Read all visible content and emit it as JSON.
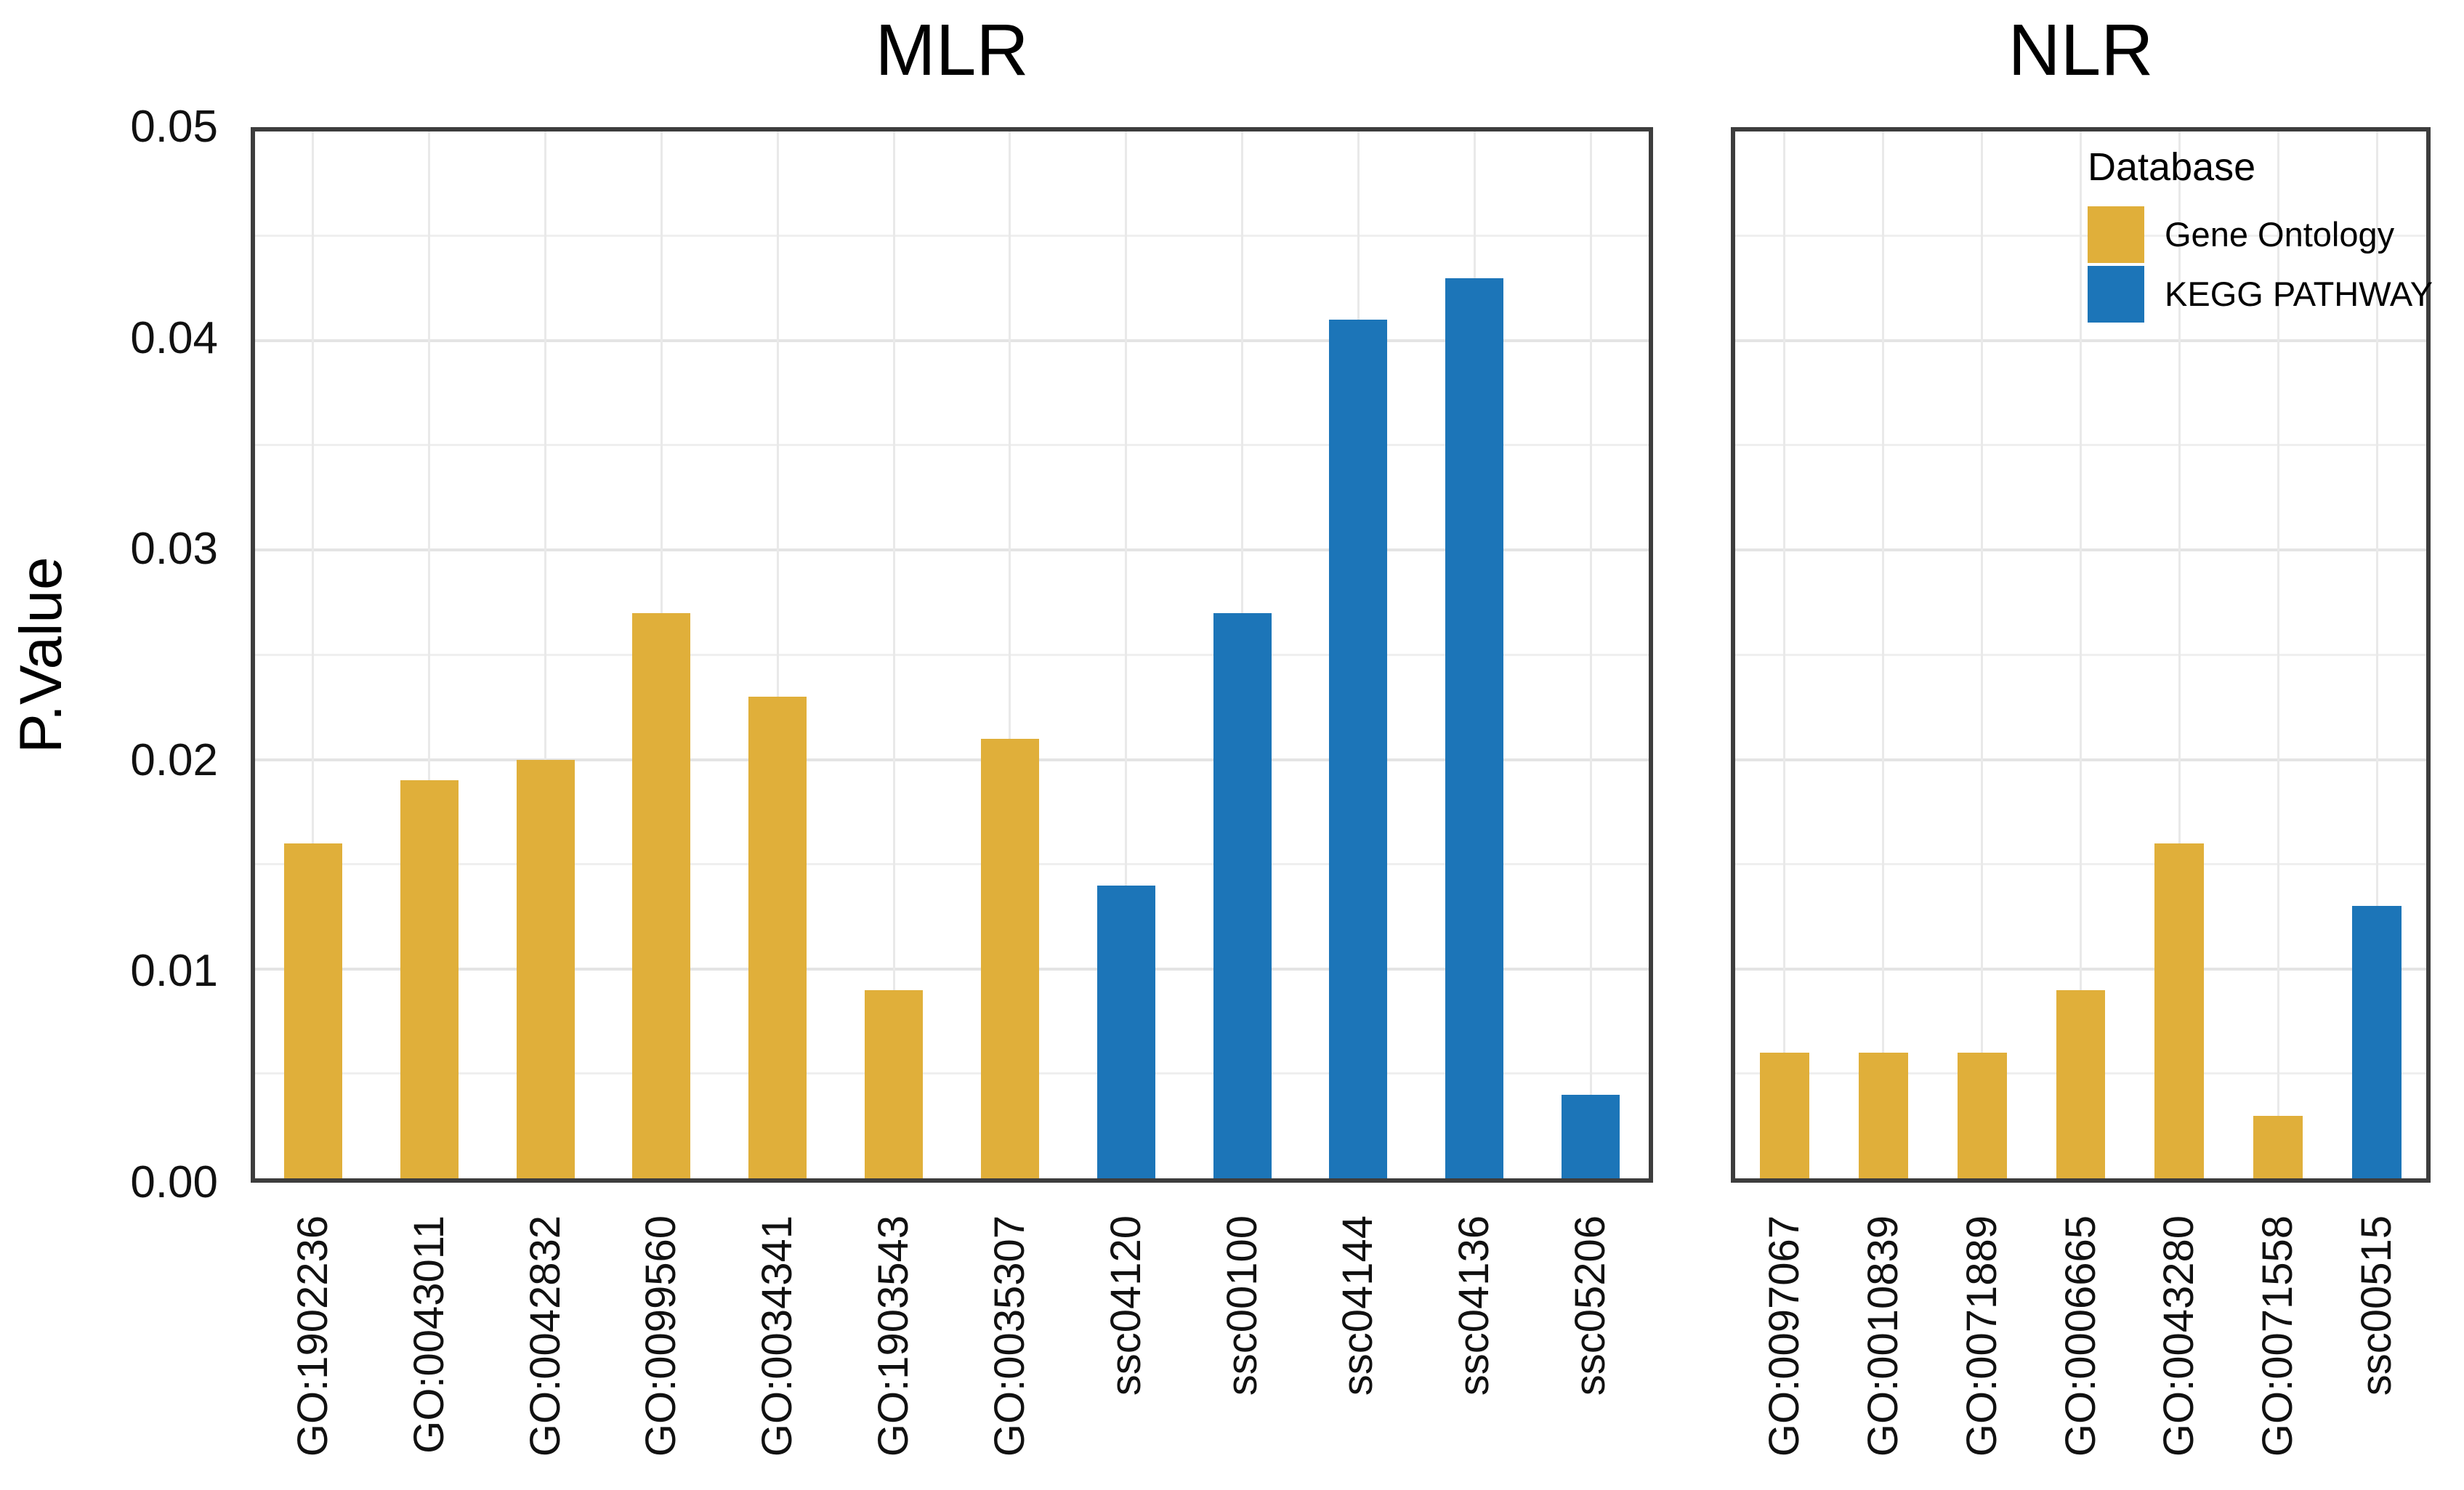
{
  "y_axis": {
    "label": "P.Value",
    "tick_labels": [
      "0.05",
      "0.04",
      "0.03",
      "0.02",
      "0.01",
      "0.00"
    ]
  },
  "legend": {
    "title": "Database",
    "items": [
      {
        "key": "gene_ontology",
        "label": "Gene Ontology",
        "color": "#E0AF3A"
      },
      {
        "key": "kegg_pathway",
        "label": "KEGG PATHWAY",
        "color": "#1C75B8"
      }
    ]
  },
  "chart_data": [
    {
      "type": "bar",
      "title": "MLR",
      "xlabel": "",
      "ylabel": "P.Value",
      "ylim": [
        0,
        0.05
      ],
      "grid": "horizontal major every 0.01 and minor every 0.005; vertical line at each category center",
      "legend_position": "inside top-right of NLR panel",
      "categories": [
        "GO:1902236",
        "GO:0043011",
        "GO:0042832",
        "GO:0099560",
        "GO:0034341",
        "GO:1903543",
        "GO:0035307",
        "ssc04120",
        "ssc00100",
        "ssc04144",
        "ssc04136",
        "ssc05206"
      ],
      "values": [
        0.016,
        0.019,
        0.02,
        0.027,
        0.023,
        0.009,
        0.021,
        0.014,
        0.027,
        0.041,
        0.043,
        0.004
      ],
      "databases": [
        "gene_ontology",
        "gene_ontology",
        "gene_ontology",
        "gene_ontology",
        "gene_ontology",
        "gene_ontology",
        "gene_ontology",
        "kegg_pathway",
        "kegg_pathway",
        "kegg_pathway",
        "kegg_pathway",
        "kegg_pathway"
      ]
    },
    {
      "type": "bar",
      "title": "NLR",
      "xlabel": "",
      "ylabel": "P.Value",
      "ylim": [
        0,
        0.05
      ],
      "grid": "horizontal major every 0.01 and minor every 0.005; vertical line at each category center",
      "legend_position": "inside top-right of NLR panel",
      "categories": [
        "GO:0097067",
        "GO:0010839",
        "GO:0071889",
        "GO:0006665",
        "GO:0043280",
        "GO:0071558",
        "ssc00515"
      ],
      "values": [
        0.006,
        0.006,
        0.006,
        0.009,
        0.016,
        0.003,
        0.013
      ],
      "databases": [
        "gene_ontology",
        "gene_ontology",
        "gene_ontology",
        "gene_ontology",
        "gene_ontology",
        "gene_ontology",
        "kegg_pathway"
      ]
    }
  ]
}
